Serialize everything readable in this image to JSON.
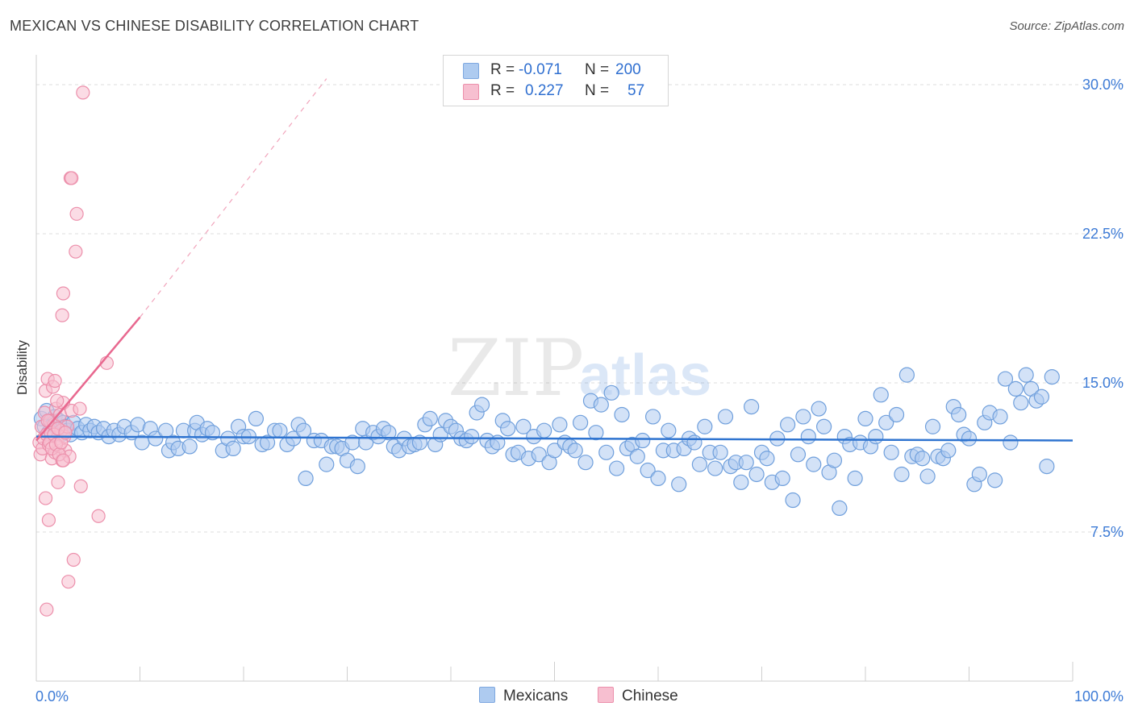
{
  "title": "MEXICAN VS CHINESE DISABILITY CORRELATION CHART",
  "source": "Source: ZipAtlas.com",
  "watermark": {
    "zip": "ZIP",
    "atlas": "atlas"
  },
  "legend": {
    "rows": [
      {
        "r_label": "R =",
        "r_value": "-0.071",
        "n_label": "N =",
        "n_value": "200",
        "color": "#aecbf0",
        "border": "#7ea8e0"
      },
      {
        "r_label": "R =",
        "r_value": "0.227",
        "n_label": "N =",
        "n_value": "57",
        "color": "#f7bfd0",
        "border": "#ec8fab"
      }
    ]
  },
  "bottom_legend": [
    {
      "label": "Mexicans",
      "color": "#aecbf0",
      "border": "#7ea8e0"
    },
    {
      "label": "Chinese",
      "color": "#f7bfd0",
      "border": "#ec8fab"
    }
  ],
  "chart_data": {
    "type": "scatter",
    "title": "MEXICAN VS CHINESE DISABILITY CORRELATION CHART",
    "xlabel": "",
    "ylabel": "Disability",
    "xlim": [
      0,
      100
    ],
    "ylim": [
      0,
      31.5
    ],
    "x_tick_labels": [
      "0.0%",
      "100.0%"
    ],
    "y_ticks": [
      7.5,
      15.0,
      22.5,
      30.0
    ],
    "y_tick_labels": [
      "7.5%",
      "15.0%",
      "22.5%",
      "30.0%"
    ],
    "grid": true,
    "colors": {
      "mexicans_fill": "#aecbf0",
      "mexicans_stroke": "#6f9fdc",
      "mexicans_line": "#2f74d0",
      "chinese_fill": "#f7bfd0",
      "chinese_stroke": "#ec8fab",
      "chinese_line": "#e8688f",
      "axis_text": "#3d7bd6"
    },
    "series": [
      {
        "name": "Mexicans",
        "trend": {
          "x0": 0,
          "y0": 12.3,
          "x1": 100,
          "y1": 12.1
        },
        "points": [
          [
            0.5,
            13.2
          ],
          [
            0.8,
            12.8
          ],
          [
            1.0,
            13.6
          ],
          [
            1.2,
            12.5
          ],
          [
            1.4,
            13.0
          ],
          [
            1.6,
            12.9
          ],
          [
            1.8,
            13.3
          ],
          [
            2.0,
            12.7
          ],
          [
            2.2,
            13.1
          ],
          [
            2.4,
            12.4
          ],
          [
            2.6,
            13.0
          ],
          [
            2.8,
            12.8
          ],
          [
            3.0,
            12.6
          ],
          [
            3.3,
            12.4
          ],
          [
            3.6,
            13.0
          ],
          [
            4.0,
            12.7
          ],
          [
            4.4,
            12.5
          ],
          [
            4.8,
            12.9
          ],
          [
            5.2,
            12.6
          ],
          [
            5.6,
            12.8
          ],
          [
            6.0,
            12.5
          ],
          [
            6.5,
            12.7
          ],
          [
            7.0,
            12.3
          ],
          [
            7.5,
            12.6
          ],
          [
            8.0,
            12.4
          ],
          [
            8.5,
            12.8
          ],
          [
            9.2,
            12.5
          ],
          [
            9.8,
            12.9
          ],
          [
            10.2,
            12.0
          ],
          [
            11.0,
            12.7
          ],
          [
            11.5,
            12.2
          ],
          [
            12.5,
            12.6
          ],
          [
            12.8,
            11.6
          ],
          [
            13.2,
            12.0
          ],
          [
            13.7,
            11.7
          ],
          [
            14.2,
            12.6
          ],
          [
            14.8,
            11.8
          ],
          [
            15.3,
            12.6
          ],
          [
            15.5,
            13.0
          ],
          [
            16.0,
            12.4
          ],
          [
            16.5,
            12.7
          ],
          [
            17.0,
            12.5
          ],
          [
            18.0,
            11.6
          ],
          [
            18.5,
            12.2
          ],
          [
            19.0,
            11.7
          ],
          [
            19.5,
            12.8
          ],
          [
            20.0,
            12.3
          ],
          [
            20.5,
            12.3
          ],
          [
            21.2,
            13.2
          ],
          [
            21.8,
            11.9
          ],
          [
            22.3,
            12.0
          ],
          [
            23.0,
            12.6
          ],
          [
            23.5,
            12.6
          ],
          [
            24.2,
            11.9
          ],
          [
            24.8,
            12.2
          ],
          [
            25.3,
            12.9
          ],
          [
            25.8,
            12.6
          ],
          [
            26.0,
            10.2
          ],
          [
            26.8,
            12.1
          ],
          [
            27.5,
            12.1
          ],
          [
            28.0,
            10.9
          ],
          [
            28.5,
            11.8
          ],
          [
            29.0,
            11.8
          ],
          [
            29.5,
            11.7
          ],
          [
            30.0,
            11.1
          ],
          [
            30.5,
            12.0
          ],
          [
            31.0,
            10.8
          ],
          [
            31.5,
            12.7
          ],
          [
            31.8,
            12.0
          ],
          [
            32.5,
            12.5
          ],
          [
            33.0,
            12.3
          ],
          [
            33.5,
            12.7
          ],
          [
            34.0,
            12.5
          ],
          [
            34.5,
            11.8
          ],
          [
            35.0,
            11.6
          ],
          [
            35.5,
            12.2
          ],
          [
            36.0,
            11.8
          ],
          [
            36.5,
            11.9
          ],
          [
            37.0,
            12.0
          ],
          [
            37.5,
            12.9
          ],
          [
            38.0,
            13.2
          ],
          [
            38.5,
            11.9
          ],
          [
            39.0,
            12.4
          ],
          [
            39.5,
            13.1
          ],
          [
            40.0,
            12.8
          ],
          [
            40.5,
            12.6
          ],
          [
            41.0,
            12.2
          ],
          [
            41.5,
            12.1
          ],
          [
            42.0,
            12.3
          ],
          [
            42.5,
            13.5
          ],
          [
            43.0,
            13.9
          ],
          [
            43.5,
            12.1
          ],
          [
            44.0,
            11.8
          ],
          [
            44.5,
            12.0
          ],
          [
            45.0,
            13.1
          ],
          [
            45.5,
            12.7
          ],
          [
            46.0,
            11.4
          ],
          [
            46.5,
            11.5
          ],
          [
            47.0,
            12.8
          ],
          [
            47.5,
            11.2
          ],
          [
            48.0,
            12.3
          ],
          [
            48.5,
            11.4
          ],
          [
            49.0,
            12.6
          ],
          [
            49.5,
            11.0
          ],
          [
            50.0,
            11.6
          ],
          [
            50.5,
            12.9
          ],
          [
            51.0,
            12.0
          ],
          [
            51.5,
            11.8
          ],
          [
            52.0,
            11.6
          ],
          [
            52.5,
            13.0
          ],
          [
            53.0,
            11.0
          ],
          [
            53.5,
            14.1
          ],
          [
            54.0,
            12.5
          ],
          [
            54.5,
            13.9
          ],
          [
            55.0,
            11.5
          ],
          [
            55.5,
            14.5
          ],
          [
            56.0,
            10.7
          ],
          [
            56.5,
            13.4
          ],
          [
            57.0,
            11.7
          ],
          [
            57.5,
            11.9
          ],
          [
            58.0,
            11.3
          ],
          [
            58.5,
            12.1
          ],
          [
            59.0,
            10.6
          ],
          [
            59.5,
            13.3
          ],
          [
            60.0,
            10.2
          ],
          [
            60.5,
            11.6
          ],
          [
            61.0,
            12.6
          ],
          [
            61.5,
            11.6
          ],
          [
            62.0,
            9.9
          ],
          [
            62.5,
            11.7
          ],
          [
            63.0,
            12.2
          ],
          [
            63.5,
            12.0
          ],
          [
            64.0,
            10.9
          ],
          [
            64.5,
            12.8
          ],
          [
            65.0,
            11.5
          ],
          [
            65.5,
            10.7
          ],
          [
            66.0,
            11.5
          ],
          [
            66.5,
            13.3
          ],
          [
            67.0,
            10.8
          ],
          [
            67.5,
            11.0
          ],
          [
            68.0,
            10.0
          ],
          [
            68.5,
            11.0
          ],
          [
            69.0,
            13.8
          ],
          [
            69.5,
            10.4
          ],
          [
            70.0,
            11.5
          ],
          [
            70.5,
            11.2
          ],
          [
            71.0,
            10.0
          ],
          [
            71.5,
            12.2
          ],
          [
            72.0,
            10.2
          ],
          [
            72.5,
            12.9
          ],
          [
            73.0,
            9.1
          ],
          [
            73.5,
            11.4
          ],
          [
            74.0,
            13.3
          ],
          [
            74.5,
            12.3
          ],
          [
            75.0,
            10.9
          ],
          [
            75.5,
            13.7
          ],
          [
            76.0,
            12.8
          ],
          [
            76.5,
            10.5
          ],
          [
            77.0,
            11.1
          ],
          [
            77.5,
            8.7
          ],
          [
            78.0,
            12.3
          ],
          [
            78.5,
            11.9
          ],
          [
            79.0,
            10.2
          ],
          [
            79.5,
            12.0
          ],
          [
            80.0,
            13.2
          ],
          [
            80.5,
            11.8
          ],
          [
            81.0,
            12.3
          ],
          [
            81.5,
            14.4
          ],
          [
            82.0,
            13.0
          ],
          [
            82.5,
            11.5
          ],
          [
            83.0,
            13.4
          ],
          [
            83.5,
            10.4
          ],
          [
            84.0,
            15.4
          ],
          [
            84.5,
            11.3
          ],
          [
            85.0,
            11.4
          ],
          [
            85.5,
            11.2
          ],
          [
            86.0,
            10.3
          ],
          [
            86.5,
            12.8
          ],
          [
            87.0,
            11.3
          ],
          [
            87.5,
            11.2
          ],
          [
            88.0,
            11.6
          ],
          [
            88.5,
            13.8
          ],
          [
            89.0,
            13.4
          ],
          [
            89.5,
            12.4
          ],
          [
            90.0,
            12.2
          ],
          [
            90.5,
            9.9
          ],
          [
            91.0,
            10.4
          ],
          [
            91.5,
            13.0
          ],
          [
            92.0,
            13.5
          ],
          [
            92.5,
            10.1
          ],
          [
            93.0,
            13.3
          ],
          [
            93.5,
            15.2
          ],
          [
            94.0,
            12.0
          ],
          [
            94.5,
            14.7
          ],
          [
            95.0,
            14.0
          ],
          [
            95.5,
            15.4
          ],
          [
            96.0,
            14.7
          ],
          [
            96.5,
            14.1
          ],
          [
            97.0,
            14.3
          ],
          [
            97.5,
            10.8
          ],
          [
            98.0,
            15.3
          ]
        ]
      },
      {
        "name": "Chinese",
        "trend": {
          "x0": 0,
          "y0": 12.1,
          "x1": 10,
          "y1": 18.3,
          "dashed_to": {
            "x": 28,
            "y": 30.3
          }
        },
        "points": [
          [
            0.3,
            12.0
          ],
          [
            0.4,
            11.4
          ],
          [
            0.5,
            12.8
          ],
          [
            0.6,
            11.7
          ],
          [
            0.7,
            12.2
          ],
          [
            0.8,
            13.5
          ],
          [
            0.9,
            14.6
          ],
          [
            1.0,
            12.4
          ],
          [
            1.1,
            15.2
          ],
          [
            1.2,
            11.9
          ],
          [
            1.3,
            13.1
          ],
          [
            1.4,
            12.5
          ],
          [
            1.5,
            11.2
          ],
          [
            1.6,
            14.8
          ],
          [
            1.7,
            12.9
          ],
          [
            1.8,
            11.5
          ],
          [
            1.9,
            13.7
          ],
          [
            2.0,
            12.2
          ],
          [
            2.1,
            10.0
          ],
          [
            2.2,
            11.8
          ],
          [
            2.3,
            13.4
          ],
          [
            2.4,
            12.6
          ],
          [
            2.5,
            11.1
          ],
          [
            2.6,
            14.0
          ],
          [
            2.7,
            12.3
          ],
          [
            2.8,
            11.6
          ],
          [
            3.0,
            12.8
          ],
          [
            3.2,
            11.3
          ],
          [
            3.4,
            13.6
          ],
          [
            0.9,
            9.2
          ],
          [
            1.2,
            8.1
          ],
          [
            1.0,
            3.6
          ],
          [
            2.5,
            18.4
          ],
          [
            2.6,
            19.5
          ],
          [
            3.1,
            5.0
          ],
          [
            3.3,
            25.3
          ],
          [
            3.4,
            25.3
          ],
          [
            3.6,
            6.1
          ],
          [
            3.8,
            21.6
          ],
          [
            3.9,
            23.5
          ],
          [
            4.2,
            13.7
          ],
          [
            4.3,
            9.8
          ],
          [
            4.5,
            29.6
          ],
          [
            6.0,
            8.3
          ],
          [
            6.8,
            16.0
          ],
          [
            1.1,
            13.1
          ],
          [
            1.3,
            12.0
          ],
          [
            1.5,
            11.7
          ],
          [
            1.7,
            12.4
          ],
          [
            1.9,
            11.9
          ],
          [
            2.1,
            12.7
          ],
          [
            2.2,
            11.4
          ],
          [
            2.4,
            12.0
          ],
          [
            2.6,
            11.1
          ],
          [
            2.8,
            12.5
          ],
          [
            1.8,
            15.1
          ],
          [
            2.0,
            14.1
          ]
        ]
      }
    ]
  }
}
